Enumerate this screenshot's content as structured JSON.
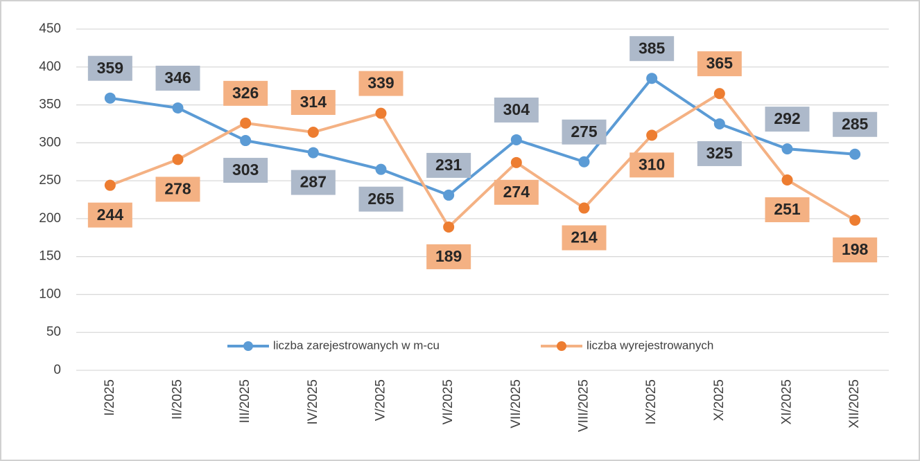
{
  "chart_data": {
    "type": "line",
    "categories": [
      "I/2025",
      "II/2025",
      "III/2025",
      "IV/2025",
      "V/2025",
      "VI/2025",
      "VII/2025",
      "VIII/2025",
      "IX/2025",
      "X/2025",
      "XI/2025",
      "XII/2025"
    ],
    "series": [
      {
        "name": "liczba zarejestrowanych w m-cu",
        "color": "#5b9bd5",
        "label_color": "#adb9ca",
        "values": [
          359,
          346,
          303,
          287,
          265,
          231,
          304,
          275,
          385,
          325,
          292,
          285
        ]
      },
      {
        "name": "liczba wyrejestrowanych",
        "color": "#ed7d31",
        "label_color": "#f4b183",
        "values": [
          244,
          278,
          326,
          314,
          339,
          189,
          274,
          214,
          310,
          365,
          251,
          198
        ]
      }
    ],
    "ylim": [
      0,
      450
    ],
    "yticks": [
      0,
      50,
      100,
      150,
      200,
      250,
      300,
      350,
      400,
      450
    ],
    "grid": true,
    "legend": "bottom"
  }
}
